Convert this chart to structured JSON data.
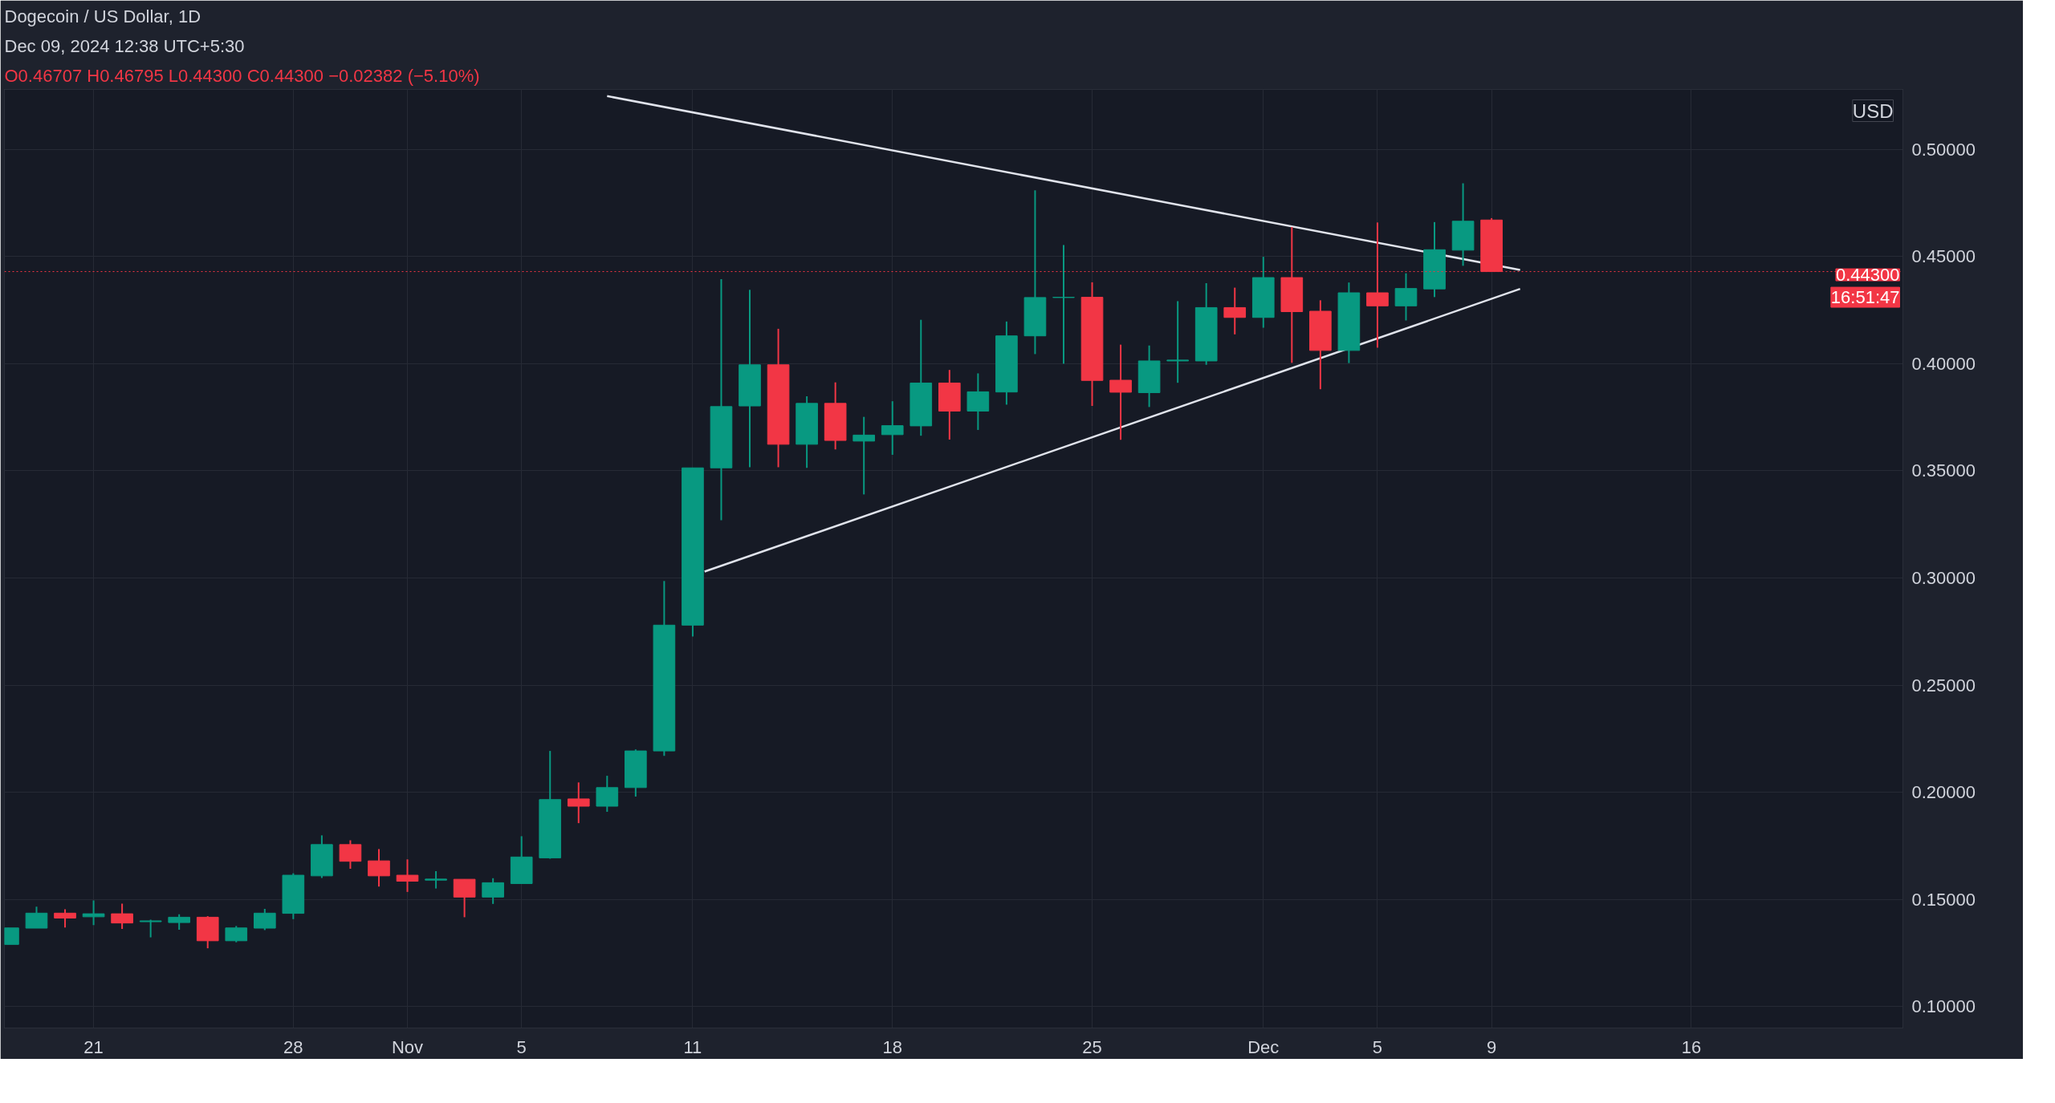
{
  "chart_data": {
    "type": "candlestick",
    "title": "Dogecoin / US Dollar, 1D",
    "subtitle": "O0.46707 H0.46795 L0.44300 C0.44300 −0.02382 (−5.10%)",
    "ylabel": "USD",
    "annotations": [
      "Dec 09, 2024 12:38 UTC+5:30"
    ],
    "x": [
      "2024-10-18",
      "2024-10-19",
      "2024-10-20",
      "2024-10-21",
      "2024-10-22",
      "2024-10-23",
      "2024-10-24",
      "2024-10-25",
      "2024-10-26",
      "2024-10-27",
      "2024-10-28",
      "2024-10-29",
      "2024-10-30",
      "2024-10-31",
      "2024-11-01",
      "2024-11-02",
      "2024-11-03",
      "2024-11-04",
      "2024-11-05",
      "2024-11-06",
      "2024-11-07",
      "2024-11-08",
      "2024-11-09",
      "2024-11-10",
      "2024-11-11",
      "2024-11-12",
      "2024-11-13",
      "2024-11-14",
      "2024-11-15",
      "2024-11-16",
      "2024-11-17",
      "2024-11-18",
      "2024-11-19",
      "2024-11-20",
      "2024-11-21",
      "2024-11-22",
      "2024-11-23",
      "2024-11-24",
      "2024-11-25",
      "2024-11-26",
      "2024-11-27",
      "2024-11-28",
      "2024-11-29",
      "2024-11-30",
      "2024-12-01",
      "2024-12-02",
      "2024-12-03",
      "2024-12-04",
      "2024-12-05",
      "2024-12-06",
      "2024-12-07",
      "2024-12-08",
      "2024-12-09"
    ],
    "ohlc": [
      [
        0.129,
        0.1367,
        0.129,
        0.1367
      ],
      [
        0.1366,
        0.1466,
        0.1366,
        0.1436
      ],
      [
        0.1436,
        0.1454,
        0.1369,
        0.1413
      ],
      [
        0.1419,
        0.1495,
        0.138,
        0.1433
      ],
      [
        0.1433,
        0.148,
        0.1362,
        0.139
      ],
      [
        0.1396,
        0.1405,
        0.1323,
        0.14
      ],
      [
        0.1392,
        0.1431,
        0.1359,
        0.1417
      ],
      [
        0.1417,
        0.1422,
        0.1272,
        0.1307
      ],
      [
        0.1307,
        0.1376,
        0.13,
        0.1367
      ],
      [
        0.1366,
        0.1456,
        0.1357,
        0.1436
      ],
      [
        0.1435,
        0.1622,
        0.1408,
        0.1613
      ],
      [
        0.161,
        0.1799,
        0.16,
        0.1756
      ],
      [
        0.1756,
        0.1776,
        0.1643,
        0.1678
      ],
      [
        0.168,
        0.1735,
        0.156,
        0.161
      ],
      [
        0.1613,
        0.1687,
        0.1535,
        0.1585
      ],
      [
        0.159,
        0.1632,
        0.1551,
        0.1595
      ],
      [
        0.1594,
        0.1594,
        0.1417,
        0.1511
      ],
      [
        0.1511,
        0.1599,
        0.1479,
        0.1578
      ],
      [
        0.1574,
        0.1795,
        0.1574,
        0.1698
      ],
      [
        0.1694,
        0.2193,
        0.169,
        0.1966
      ],
      [
        0.1969,
        0.2046,
        0.1856,
        0.1935
      ],
      [
        0.1935,
        0.2077,
        0.1909,
        0.2022
      ],
      [
        0.2022,
        0.22,
        0.198,
        0.2193
      ],
      [
        0.2193,
        0.2986,
        0.217,
        0.278
      ],
      [
        0.278,
        0.3514,
        0.2727,
        0.3514
      ],
      [
        0.3514,
        0.4395,
        0.327,
        0.38
      ],
      [
        0.3803,
        0.4345,
        0.3517,
        0.3995
      ],
      [
        0.3995,
        0.4163,
        0.3517,
        0.3624
      ],
      [
        0.3624,
        0.3848,
        0.3514,
        0.3815
      ],
      [
        0.3815,
        0.3913,
        0.36,
        0.3642
      ],
      [
        0.3639,
        0.3752,
        0.339,
        0.3667
      ],
      [
        0.3669,
        0.3825,
        0.3575,
        0.3711
      ],
      [
        0.371,
        0.4205,
        0.3664,
        0.391
      ],
      [
        0.391,
        0.3971,
        0.3646,
        0.3779
      ],
      [
        0.3779,
        0.3955,
        0.3691,
        0.3869
      ],
      [
        0.3868,
        0.4197,
        0.3809,
        0.413
      ],
      [
        0.413,
        0.4809,
        0.4045,
        0.4309
      ],
      [
        0.4309,
        0.4554,
        0.4,
        0.431
      ],
      [
        0.431,
        0.438,
        0.3803,
        0.3922
      ],
      [
        0.3923,
        0.4089,
        0.3645,
        0.3867
      ],
      [
        0.3865,
        0.4085,
        0.3798,
        0.4013
      ],
      [
        0.4013,
        0.4292,
        0.3911,
        0.4017
      ],
      [
        0.4013,
        0.4376,
        0.3995,
        0.4262
      ],
      [
        0.4262,
        0.4355,
        0.4137,
        0.4216
      ],
      [
        0.4216,
        0.4499,
        0.4168,
        0.4402
      ],
      [
        0.4402,
        0.4638,
        0.4004,
        0.4243
      ],
      [
        0.4245,
        0.4296,
        0.3881,
        0.4062
      ],
      [
        0.4062,
        0.4379,
        0.4003,
        0.4331
      ],
      [
        0.4331,
        0.4659,
        0.4075,
        0.427
      ],
      [
        0.427,
        0.4422,
        0.4202,
        0.4351
      ],
      [
        0.4349,
        0.4661,
        0.4311,
        0.4532
      ],
      [
        0.453,
        0.4842,
        0.4457,
        0.4665
      ],
      [
        0.46707,
        0.46795,
        0.443,
        0.443
      ]
    ],
    "colors": [
      "#089981",
      "#089981",
      "#f23645",
      "#089981",
      "#f23645",
      "#089981",
      "#089981",
      "#f23645",
      "#089981",
      "#089981",
      "#089981",
      "#089981",
      "#f23645",
      "#f23645",
      "#f23645",
      "#089981",
      "#f23645",
      "#089981",
      "#089981",
      "#089981",
      "#f23645",
      "#089981",
      "#089981",
      "#089981",
      "#089981",
      "#089981",
      "#089981",
      "#f23645",
      "#089981",
      "#f23645",
      "#089981",
      "#089981",
      "#089981",
      "#f23645",
      "#089981",
      "#089981",
      "#089981",
      "#089981",
      "#f23645",
      "#f23645",
      "#089981",
      "#089981",
      "#089981",
      "#f23645",
      "#089981",
      "#f23645",
      "#f23645",
      "#089981",
      "#f23645",
      "#089981",
      "#089981",
      "#089981",
      "#f23645"
    ],
    "series": [
      {
        "type": "line",
        "color": "#e0e3eb",
        "x": [
          "2024-11-08",
          "2024-12-10"
        ],
        "values": [
          0.5249,
          0.4438
        ]
      },
      {
        "type": "line",
        "color": "#e0e3eb",
        "x": [
          "2024-11-11T10:00",
          "2024-12-10"
        ],
        "values": [
          0.303,
          0.4349
        ]
      }
    ],
    "ref_lines": [
      {
        "axis": "y",
        "value": 0.443,
        "label": "0.44300 16:51:47",
        "color": "#f23645",
        "line_style": "dotted"
      }
    ],
    "xlim": [
      "2024-10-17T21:00",
      "2024-12-23T10:00"
    ],
    "xticks": [
      {
        "value": "2024-10-21",
        "label": "21"
      },
      {
        "value": "2024-10-28",
        "label": "28"
      },
      {
        "value": "2024-11-01",
        "label": "Nov"
      },
      {
        "value": "2024-11-05",
        "label": "5"
      },
      {
        "value": "2024-11-11",
        "label": "11"
      },
      {
        "value": "2024-11-18",
        "label": "18"
      },
      {
        "value": "2024-11-25",
        "label": "25"
      },
      {
        "value": "2024-12-01",
        "label": "Dec"
      },
      {
        "value": "2024-12-05",
        "label": "5"
      },
      {
        "value": "2024-12-09",
        "label": "9"
      },
      {
        "value": "2024-12-16",
        "label": "16"
      }
    ],
    "ylim": [
      0.09,
      0.528
    ],
    "yticks": [
      {
        "value": 0.1,
        "label": "0.10000"
      },
      {
        "value": 0.15,
        "label": "0.15000"
      },
      {
        "value": 0.2,
        "label": "0.20000"
      },
      {
        "value": 0.25,
        "label": "0.25000"
      },
      {
        "value": 0.3,
        "label": "0.30000"
      },
      {
        "value": 0.35,
        "label": "0.35000"
      },
      {
        "value": 0.4,
        "label": "0.40000"
      },
      {
        "value": 0.45,
        "label": "0.45000"
      },
      {
        "value": 0.5,
        "label": "0.50000"
      }
    ],
    "grid": true
  }
}
